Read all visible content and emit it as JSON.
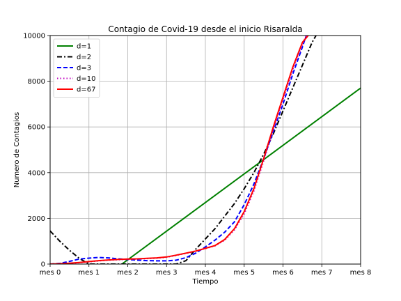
{
  "chart_data": {
    "type": "line",
    "title": "Contagio de Covid-19 desde el inicio Risaralda",
    "xlabel": "Tiempo",
    "ylabel": "Numero de Contagios",
    "xlim": [
      0,
      8
    ],
    "ylim": [
      0,
      10000
    ],
    "x_ticks": [
      0,
      1,
      2,
      3,
      4,
      5,
      6,
      7,
      8
    ],
    "x_tick_labels": [
      "mes 0",
      "mes 1",
      "mes 2",
      "mes 3",
      "mes 4",
      "mes 5",
      "mes 6",
      "mes 7",
      "mes 8"
    ],
    "y_ticks": [
      0,
      2000,
      4000,
      6000,
      8000,
      10000
    ],
    "y_tick_labels": [
      "0",
      "2000",
      "4000",
      "6000",
      "8000",
      "10000"
    ],
    "grid": true,
    "legend_position": "top-left",
    "series": [
      {
        "name": "d=1",
        "color": "#008000",
        "dash": "solid",
        "x": [
          1.85,
          8.0
        ],
        "y": [
          0,
          7700
        ]
      },
      {
        "name": "d=2",
        "color": "#000000",
        "dash": "dashdot",
        "x": [
          0,
          0.25,
          0.5,
          0.75,
          1.0,
          1.25,
          1.5,
          1.75,
          2.0,
          2.25,
          2.5,
          2.75,
          3.0,
          3.25,
          3.5,
          3.75,
          4.0,
          4.25,
          4.5,
          4.75,
          5.0,
          5.25,
          5.5,
          5.75,
          6.0,
          6.25,
          6.5,
          6.75,
          6.85
        ],
        "y": [
          1450,
          1000,
          600,
          250,
          0,
          0,
          0,
          0,
          0,
          0,
          0,
          0,
          0,
          0,
          150,
          650,
          1100,
          1550,
          2100,
          2650,
          3300,
          4000,
          4800,
          5700,
          6700,
          7700,
          8700,
          9700,
          10000
        ]
      },
      {
        "name": "d=3",
        "color": "#0000ff",
        "dash": "dashed",
        "x": [
          0,
          0.25,
          0.5,
          0.75,
          1.0,
          1.25,
          1.5,
          1.75,
          2.0,
          2.25,
          2.5,
          2.75,
          3.0,
          3.25,
          3.5,
          3.75,
          4.0,
          4.25,
          4.5,
          4.75,
          5.0,
          5.25,
          5.5,
          5.75,
          6.0,
          6.25,
          6.5,
          6.6
        ],
        "y": [
          0,
          30,
          120,
          220,
          260,
          290,
          270,
          230,
          200,
          170,
          150,
          140,
          140,
          170,
          280,
          480,
          750,
          1050,
          1400,
          1850,
          2600,
          3500,
          4600,
          5800,
          7000,
          8300,
          9500,
          10000
        ]
      },
      {
        "name": "d=10",
        "color": "#bf00bf",
        "dash": "dotted",
        "x": [
          0,
          0.25,
          0.5,
          0.75,
          1.0,
          1.25,
          1.5,
          1.75,
          2.0,
          2.25,
          2.5,
          2.75,
          3.0,
          3.25,
          3.5,
          3.75,
          4.0,
          4.25,
          4.5,
          4.75,
          5.0,
          5.25,
          5.5,
          5.75,
          6.0,
          6.25,
          6.5,
          6.6
        ],
        "y": [
          0,
          10,
          30,
          60,
          100,
          140,
          170,
          190,
          210,
          220,
          240,
          260,
          300,
          380,
          470,
          560,
          680,
          800,
          1050,
          1500,
          2200,
          3200,
          4500,
          5900,
          7200,
          8500,
          9600,
          10000
        ]
      },
      {
        "name": "d=67",
        "color": "#ff0000",
        "dash": "solid",
        "x": [
          0,
          0.25,
          0.5,
          0.75,
          1.0,
          1.25,
          1.5,
          1.75,
          2.0,
          2.25,
          2.5,
          2.75,
          3.0,
          3.25,
          3.5,
          3.75,
          4.0,
          4.25,
          4.5,
          4.75,
          5.0,
          5.25,
          5.5,
          5.75,
          6.0,
          6.25,
          6.5,
          6.65
        ],
        "y": [
          0,
          15,
          40,
          70,
          110,
          150,
          180,
          200,
          220,
          230,
          250,
          270,
          310,
          390,
          480,
          570,
          690,
          810,
          1080,
          1550,
          2300,
          3300,
          4600,
          6000,
          7300,
          8600,
          9700,
          10000
        ]
      }
    ]
  }
}
